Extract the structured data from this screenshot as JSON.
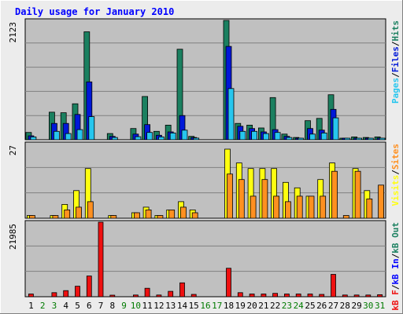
{
  "title": "Daily usage for January 2010",
  "colors": {
    "background": "#ececec",
    "panel": "#c0c0c0",
    "title": "#0000ff",
    "hits": "#1b8060",
    "files": "#0018d8",
    "pages": "#27c6ee",
    "visits": "#ffff10",
    "sites": "#ff9020",
    "kbytes": "#ee1010",
    "kbout": "#1b8060",
    "kbin": "#0000ff",
    "weekend_label": "#007a00"
  },
  "chart_data": {
    "type": "bar",
    "x": [
      "1",
      "2",
      "3",
      "4",
      "5",
      "6",
      "7",
      "8",
      "9",
      "10",
      "11",
      "12",
      "13",
      "14",
      "15",
      "16",
      "17",
      "18",
      "19",
      "20",
      "21",
      "22",
      "23",
      "24",
      "25",
      "26",
      "27",
      "28",
      "29",
      "30",
      "31"
    ],
    "weekend_days": [
      "2",
      "3",
      "9",
      "10",
      "16",
      "17",
      "23",
      "24",
      "30",
      "31"
    ],
    "panels": [
      {
        "name": "requests",
        "scale_label": "2123",
        "ymax": 2123,
        "labels": [
          {
            "text": "Pages",
            "color": "#27c6ee"
          },
          {
            "text": "/",
            "color": "#000000"
          },
          {
            "text": "Files",
            "color": "#0018d8"
          },
          {
            "text": "/",
            "color": "#000000"
          },
          {
            "text": "Hits",
            "color": "#1b8060"
          }
        ],
        "series": [
          {
            "name": "Hits",
            "color": "#1b8060",
            "values": [
              130,
              0,
              490,
              480,
              640,
              1920,
              0,
              110,
              0,
              200,
              770,
              150,
              260,
              1610,
              60,
              0,
              0,
              2123,
              290,
              260,
              210,
              750,
              100,
              40,
              340,
              380,
              800,
              20,
              50,
              40,
              50
            ]
          },
          {
            "name": "Files",
            "color": "#0018d8",
            "values": [
              70,
              0,
              290,
              290,
              450,
              1030,
              0,
              60,
              0,
              100,
              270,
              80,
              140,
              430,
              40,
              0,
              0,
              1660,
              240,
              200,
              140,
              180,
              60,
              25,
              200,
              170,
              540,
              12,
              30,
              25,
              30
            ]
          },
          {
            "name": "Pages",
            "color": "#27c6ee",
            "values": [
              50,
              0,
              150,
              110,
              180,
              410,
              0,
              40,
              0,
              55,
              130,
              50,
              120,
              170,
              30,
              0,
              0,
              910,
              150,
              150,
              110,
              130,
              40,
              20,
              100,
              120,
              390,
              8,
              20,
              15,
              20
            ]
          }
        ]
      },
      {
        "name": "visitors",
        "scale_label": "27",
        "ymax": 27,
        "labels": [
          {
            "text": "Visits",
            "color": "#ffff10"
          },
          {
            "text": "/",
            "color": "#000000"
          },
          {
            "text": "Sites",
            "color": "#ff9020"
          }
        ],
        "series": [
          {
            "name": "Visits",
            "color": "#ffff10",
            "values": [
              1,
              0,
              1,
              5,
              10,
              18,
              0,
              1,
              0,
              2,
              4,
              1,
              3,
              6,
              3,
              0,
              0,
              25,
              20,
              18,
              18,
              18,
              13,
              11,
              8,
              14,
              20,
              0,
              18,
              10,
              0
            ]
          },
          {
            "name": "Sites",
            "color": "#ff9020",
            "values": [
              1,
              0,
              1,
              3,
              4,
              6,
              0,
              1,
              0,
              2,
              3,
              1,
              3,
              4,
              2,
              0,
              0,
              16,
              14,
              8,
              14,
              8,
              6,
              8,
              8,
              8,
              17,
              1,
              17,
              7,
              12
            ]
          }
        ]
      },
      {
        "name": "kbytes",
        "scale_label": "21985",
        "ymax": 21985,
        "labels": [
          {
            "text": "kB F",
            "color": "#ee1010"
          },
          {
            "text": "/",
            "color": "#000000"
          },
          {
            "text": "kB In",
            "color": "#0000ff"
          },
          {
            "text": "/",
            "color": "#000000"
          },
          {
            "text": "kB Out",
            "color": "#1b8060"
          }
        ],
        "series": [
          {
            "name": "kB F",
            "color": "#ee1010",
            "values": [
              800,
              0,
              1200,
              1800,
              3100,
              6100,
              21985,
              300,
              0,
              500,
              2500,
              500,
              1600,
              4100,
              700,
              0,
              0,
              8400,
              1200,
              800,
              800,
              1000,
              800,
              800,
              800,
              700,
              6600,
              500,
              500,
              500,
              600
            ]
          }
        ]
      }
    ]
  }
}
